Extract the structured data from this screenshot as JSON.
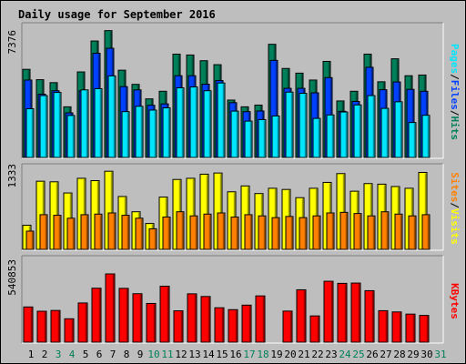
{
  "title": "Daily usage for September 2016",
  "colors": {
    "background": "#bebebe",
    "title": "#0000b0",
    "weekday_label": "#000000",
    "weekend_label": "#00805a",
    "pages": "#00e6ff",
    "files": "#0040ff",
    "hits": "#00805a",
    "visits": "#ffff00",
    "sites": "#ff8000",
    "kbytes": "#ff0000"
  },
  "chart_data": [
    {
      "type": "bar",
      "name": "hits-files-pages",
      "categories": [
        "1",
        "2",
        "3",
        "4",
        "5",
        "6",
        "7",
        "8",
        "9",
        "10",
        "11",
        "12",
        "13",
        "14",
        "15",
        "16",
        "17",
        "18",
        "19",
        "20",
        "21",
        "22",
        "23",
        "24",
        "25",
        "26",
        "27",
        "28",
        "29",
        "30",
        "31"
      ],
      "ymax_label": "7376",
      "ylim": [
        0,
        7376
      ],
      "legend": [
        "Pages",
        "Files",
        "Hits"
      ],
      "series": [
        {
          "name": "Hits",
          "values": [
            5100,
            4500,
            4330,
            2930,
            4950,
            6740,
            7340,
            5050,
            4230,
            3390,
            3830,
            5980,
            5930,
            5600,
            5370,
            3320,
            2930,
            3030,
            6550,
            5150,
            4880,
            4480,
            5560,
            3270,
            3830,
            5980,
            4380,
            5710,
            4730,
            4770,
            0
          ]
        },
        {
          "name": "Files",
          "values": [
            4480,
            3660,
            3860,
            2580,
            3860,
            6030,
            6320,
            4100,
            3910,
            3020,
            3100,
            4730,
            4730,
            4240,
            4450,
            3170,
            2650,
            2690,
            5620,
            4000,
            4000,
            3740,
            4620,
            2670,
            3240,
            5220,
            3920,
            4370,
            3940,
            3830,
            0
          ]
        },
        {
          "name": "Pages",
          "values": [
            2820,
            3580,
            3760,
            2430,
            3910,
            3980,
            4720,
            2650,
            2960,
            2740,
            2870,
            4030,
            4080,
            3860,
            4310,
            2680,
            2100,
            2190,
            2400,
            3780,
            3710,
            2260,
            2460,
            2630,
            3040,
            3580,
            2840,
            3220,
            2020,
            2440,
            0
          ]
        }
      ]
    },
    {
      "type": "bar",
      "name": "visits-sites",
      "categories": [
        "1",
        "2",
        "3",
        "4",
        "5",
        "6",
        "7",
        "8",
        "9",
        "10",
        "11",
        "12",
        "13",
        "14",
        "15",
        "16",
        "17",
        "18",
        "19",
        "20",
        "21",
        "22",
        "23",
        "24",
        "25",
        "26",
        "27",
        "28",
        "29",
        "30",
        "31"
      ],
      "ymax_label": "1333",
      "ylim": [
        0,
        1333
      ],
      "legend": [
        "Sites",
        "Visits"
      ],
      "series": [
        {
          "name": "Visits",
          "values": [
            410,
            1160,
            1150,
            960,
            1210,
            1170,
            1330,
            900,
            640,
            440,
            890,
            1190,
            1210,
            1280,
            1300,
            980,
            1080,
            950,
            1040,
            1020,
            880,
            1040,
            1140,
            1290,
            990,
            1120,
            1110,
            1070,
            1040,
            1310,
            0
          ]
        },
        {
          "name": "Sites",
          "values": [
            310,
            590,
            580,
            530,
            590,
            600,
            620,
            580,
            530,
            350,
            550,
            640,
            570,
            600,
            620,
            550,
            590,
            570,
            540,
            560,
            540,
            570,
            620,
            630,
            610,
            570,
            640,
            600,
            570,
            590,
            0
          ]
        }
      ]
    },
    {
      "type": "bar",
      "name": "kbytes",
      "categories": [
        "1",
        "2",
        "3",
        "4",
        "5",
        "6",
        "7",
        "8",
        "9",
        "10",
        "11",
        "12",
        "13",
        "14",
        "15",
        "16",
        "17",
        "18",
        "19",
        "20",
        "21",
        "22",
        "23",
        "24",
        "25",
        "26",
        "27",
        "28",
        "29",
        "30",
        "31"
      ],
      "ymax_label": "540853",
      "ylim": [
        0,
        540853
      ],
      "legend": [
        "KBytes"
      ],
      "series": [
        {
          "name": "KBytes",
          "values": [
            240500,
            211200,
            216600,
            159800,
            267700,
            368600,
            466300,
            367600,
            331100,
            264400,
            382400,
            214100,
            330200,
            312000,
            235100,
            222100,
            252900,
            316000,
            0,
            212300,
            357800,
            179300,
            416100,
            401700,
            403700,
            351600,
            215000,
            206500,
            191600,
            182700,
            0
          ]
        }
      ]
    }
  ],
  "day_labels": {
    "weekend_days": [
      "3",
      "4",
      "10",
      "11",
      "17",
      "18",
      "24",
      "25",
      "31"
    ]
  }
}
